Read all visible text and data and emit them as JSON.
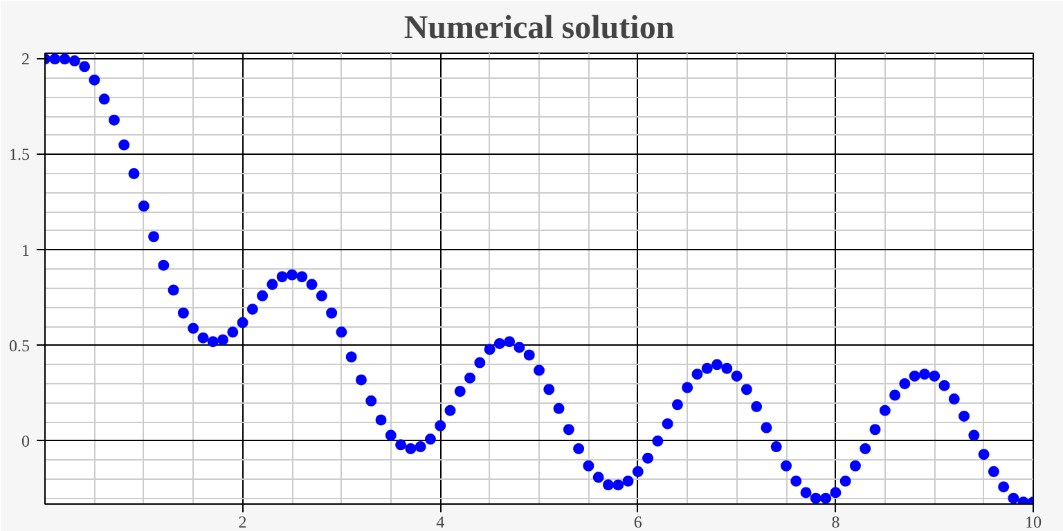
{
  "chart_data": {
    "type": "scatter",
    "title": "Numerical solution",
    "x": [
      0,
      0.1,
      0.2,
      0.3,
      0.4,
      0.5,
      0.6,
      0.7,
      0.8,
      0.9,
      1,
      1.1,
      1.2,
      1.3,
      1.4,
      1.5,
      1.6,
      1.7,
      1.8,
      1.9,
      2,
      2.1,
      2.2,
      2.3,
      2.4,
      2.5,
      2.6,
      2.7,
      2.8,
      2.9,
      3,
      3.1,
      3.2,
      3.3,
      3.4,
      3.5,
      3.6,
      3.7,
      3.8,
      3.9,
      4,
      4.1,
      4.2,
      4.3,
      4.4,
      4.5,
      4.6,
      4.7,
      4.8,
      4.9,
      5,
      5.1,
      5.2,
      5.3,
      5.4,
      5.5,
      5.6,
      5.7,
      5.8,
      5.9,
      6,
      6.1,
      6.2,
      6.3,
      6.4,
      6.5,
      6.6,
      6.7,
      6.8,
      6.9,
      7,
      7.1,
      7.2,
      7.3,
      7.4,
      7.5,
      7.6,
      7.7,
      7.8,
      7.9,
      8,
      8.1,
      8.2,
      8.3,
      8.4,
      8.5,
      8.6,
      8.7,
      8.8,
      8.9,
      9,
      9.1,
      9.2,
      9.3,
      9.4,
      9.5,
      9.6,
      9.7,
      9.8,
      9.9,
      10
    ],
    "series": [
      {
        "color": "#0000ff",
        "values": [
          2.0,
          2.0,
          2.0,
          1.99,
          1.96,
          1.89,
          1.79,
          1.68,
          1.55,
          1.4,
          1.23,
          1.07,
          0.92,
          0.79,
          0.67,
          0.59,
          0.54,
          0.52,
          0.53,
          0.57,
          0.62,
          0.69,
          0.76,
          0.82,
          0.86,
          0.87,
          0.86,
          0.82,
          0.76,
          0.67,
          0.57,
          0.44,
          0.32,
          0.21,
          0.11,
          0.03,
          -0.02,
          -0.04,
          -0.03,
          0.01,
          0.08,
          0.16,
          0.26,
          0.33,
          0.41,
          0.48,
          0.51,
          0.52,
          0.49,
          0.45,
          0.37,
          0.27,
          0.17,
          0.06,
          -0.04,
          -0.13,
          -0.19,
          -0.23,
          -0.23,
          -0.21,
          -0.16,
          -0.09,
          0.0,
          0.09,
          0.19,
          0.28,
          0.35,
          0.38,
          0.4,
          0.38,
          0.34,
          0.27,
          0.18,
          0.07,
          -0.03,
          -0.13,
          -0.21,
          -0.27,
          -0.3,
          -0.3,
          -0.27,
          -0.21,
          -0.13,
          -0.04,
          0.06,
          0.16,
          0.24,
          0.3,
          0.34,
          0.35,
          0.34,
          0.29,
          0.22,
          0.13,
          0.03,
          -0.07,
          -0.16,
          -0.24,
          -0.3,
          -0.32,
          -0.32
        ]
      }
    ],
    "xlim": [
      0,
      10
    ],
    "ylim": [
      -0.33,
      2.03
    ],
    "xticks": [
      2,
      4,
      6,
      8,
      10
    ],
    "yticks": [
      0,
      0.5,
      1,
      1.5,
      2
    ],
    "grid": true,
    "marker": "circle"
  }
}
